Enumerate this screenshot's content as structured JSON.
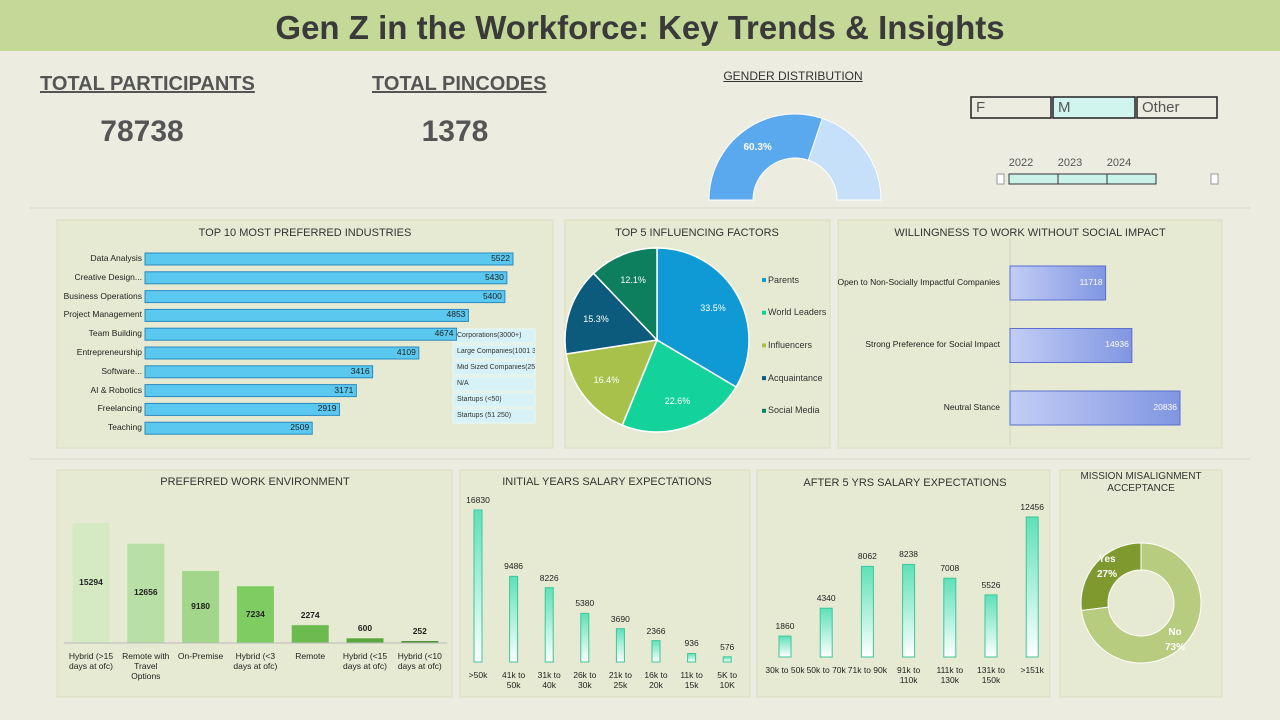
{
  "header": {
    "title": "Gen Z in the Workforce: Key Trends & Insights"
  },
  "kpis": [
    {
      "label": "TOTAL PARTICIPANTS",
      "value": 78738
    },
    {
      "label": "TOTAL PINCODES",
      "value": 1378
    }
  ],
  "slicers": {
    "gender": [
      "F",
      "M",
      "Other"
    ],
    "years": [
      "2022",
      "2023",
      "2024"
    ],
    "company_size": [
      "Corporations(3000+)",
      "Large Companies(1001 3...",
      "Mid Sized Companies(25...",
      "N/A",
      "Startups (<50)",
      "Startups (51 250)"
    ]
  },
  "chart_data": [
    {
      "type": "donut",
      "half": true,
      "title": "GENDER DISTRIBUTION",
      "values": [
        60.3,
        39.7
      ],
      "value_labels": [
        "60.3%",
        null
      ],
      "colors": [
        "#5aa9ef",
        "#c6e0fa"
      ]
    },
    {
      "type": "bar",
      "orientation": "horizontal",
      "title": "TOP 10 MOST PREFERRED INDUSTRIES",
      "categories": [
        "Data Analysis",
        "Creative Design...",
        "Business Operations",
        "Project Management",
        "Team Building",
        "Entrepreneurship",
        "Software...",
        "AI & Robotics",
        "Freelancing",
        "Teaching"
      ],
      "values": [
        5522,
        5430,
        5400,
        4853,
        4674,
        4109,
        3416,
        3171,
        2919,
        2509
      ],
      "color": "#5bc8f0"
    },
    {
      "type": "pie",
      "title": "TOP 5 INFLUENCING FACTORS",
      "categories": [
        "Parents",
        "World Leaders",
        "Influencers",
        "Acquaintance",
        "Social Media"
      ],
      "values": [
        33.5,
        22.6,
        16.4,
        15.3,
        12.1
      ],
      "value_labels": [
        "33.5%",
        "22.6%",
        "16.4%",
        "15.3%",
        "12.1%"
      ],
      "colors": [
        "#0f9ad6",
        "#14d39a",
        "#a8c14a",
        "#0c5b7d",
        "#0d7f5f"
      ]
    },
    {
      "type": "bar",
      "orientation": "horizontal",
      "title": "WILLINGNESS TO WORK WITHOUT SOCIAL IMPACT",
      "categories": [
        "Open to Non-Socially Impactful Companies",
        "Strong Preference for Social Impact",
        "Neutral Stance"
      ],
      "values": [
        11718,
        14936,
        20836
      ],
      "color": "#8096e2"
    },
    {
      "type": "bar",
      "orientation": "vertical",
      "title": "PREFERRED WORK ENVIRONMENT",
      "categories": [
        "Hybrid (>15 days at ofc)",
        "Remote with Travel Options",
        "On-Premise",
        "Hybrid (<3 days at ofc)",
        "Remote",
        "Hybrid (<15 days at ofc)",
        "Hybrid (<10 days at ofc)"
      ],
      "values": [
        15294,
        12656,
        9180,
        7234,
        2274,
        600,
        252
      ],
      "colors": [
        "#d5e9c3",
        "#b8dfa6",
        "#a1d68b",
        "#7fcc62",
        "#6cbb4f",
        "#5aa83d",
        "#4d9433"
      ]
    },
    {
      "type": "bar",
      "orientation": "vertical",
      "title": "INITIAL YEARS SALARY EXPECTATIONS",
      "categories": [
        ">50k",
        "41k to 50k",
        "31k to 40k",
        "26k to 30k",
        "21k to 25k",
        "16k to 20k",
        "11k to 15k",
        "5K to 10K"
      ],
      "values": [
        16830,
        9486,
        8226,
        5380,
        3690,
        2366,
        936,
        576
      ],
      "color": "#5fe0b8"
    },
    {
      "type": "bar",
      "orientation": "vertical",
      "title": "AFTER 5 YRS SALARY EXPECTATIONS",
      "categories": [
        "30k to 50k",
        "50k to 70k",
        "71k to 90k",
        "91k to 110k",
        "111k to 130k",
        "131k to 150k",
        ">151k"
      ],
      "values": [
        1860,
        4340,
        8062,
        8238,
        7008,
        5526,
        12456
      ],
      "color": "#5fe0b8"
    },
    {
      "type": "donut",
      "half": false,
      "title": "MISSION MISALIGNMENT ACCEPTANCE",
      "categories": [
        "Yes",
        "No"
      ],
      "values": [
        27,
        73
      ],
      "value_labels": [
        "27%",
        "73%"
      ],
      "colors": [
        "#7e9a2e",
        "#b8cc7f"
      ]
    }
  ]
}
